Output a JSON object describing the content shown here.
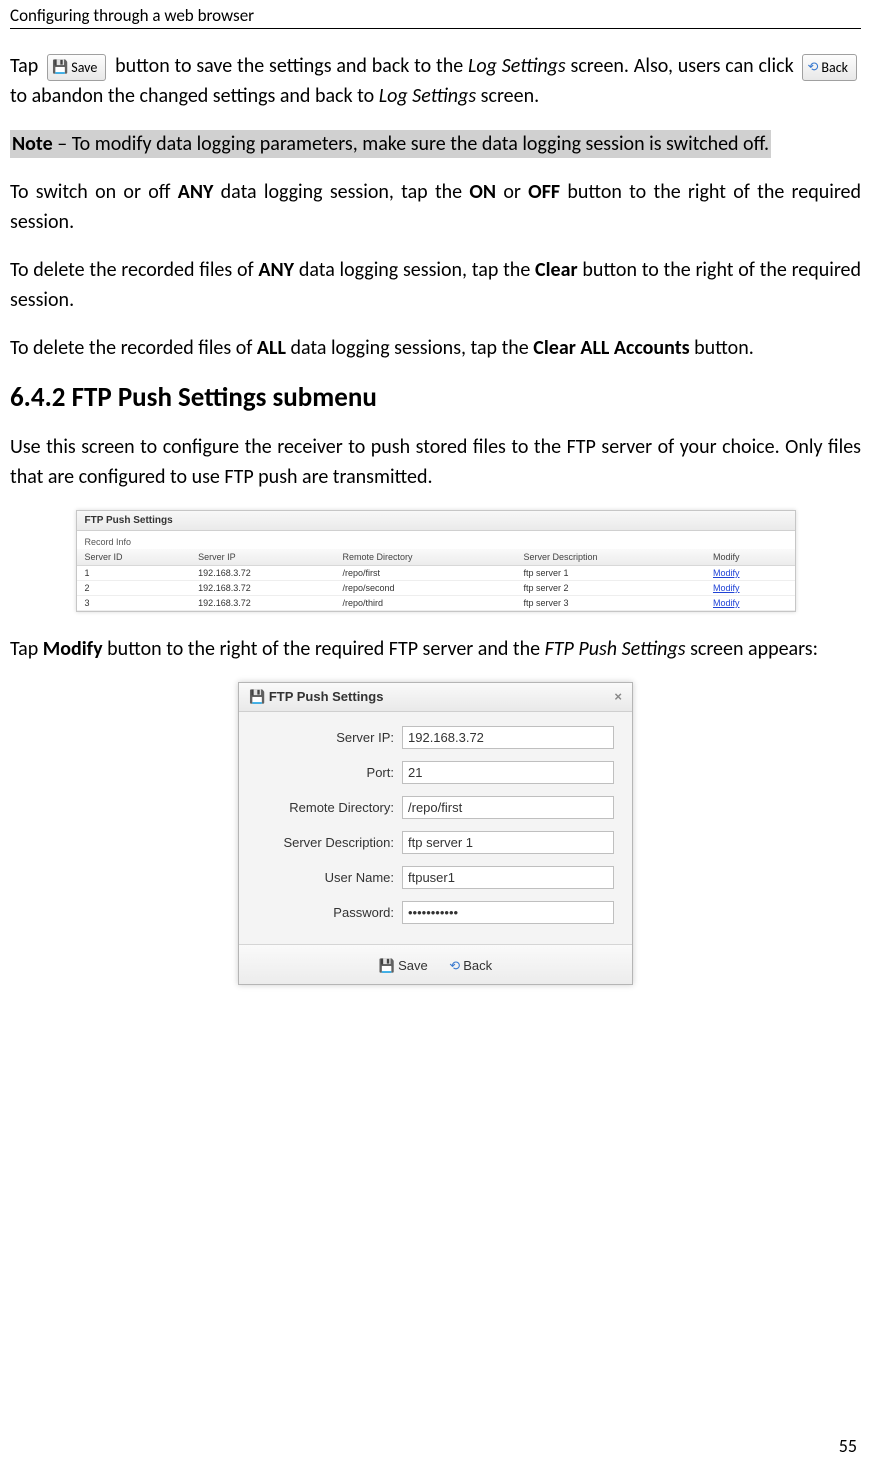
{
  "header": "Configuring through a web browser",
  "page_number": "55",
  "save_button_label": "Save",
  "back_button_label": "Back",
  "para1_a": "Tap ",
  "para1_b": " button to save the settings and back to the ",
  "para1_c": "Log Settings",
  "para1_d": " screen. Also, users can click ",
  "para1_e": " to abandon the changed settings and back to ",
  "para1_f": "Log Settings",
  "para1_g": " screen.",
  "note_label": "Note",
  "note_text": " – To modify data logging parameters, make sure the data logging session is switched off.",
  "para2_a": "To switch on or off ",
  "para2_b": "ANY",
  "para2_c": " data logging session, tap the ",
  "para2_d": "ON",
  "para2_e": " or ",
  "para2_f": "OFF",
  "para2_g": " button to the right of the required session.",
  "para3_a": "To delete the recorded files of ",
  "para3_b": "ANY",
  "para3_c": " data logging session, tap the ",
  "para3_d": "Clear",
  "para3_e": " button to the right of the required session.",
  "para4_a": "To delete the recorded files of ",
  "para4_b": "ALL",
  "para4_c": " data logging sessions, tap the ",
  "para4_d": "Clear ALL Accounts",
  "para4_e": " button.",
  "section_heading": "6.4.2  FTP Push Settings submenu",
  "para5": "Use this screen to configure the receiver to push stored files to the FTP server of your choice. Only files that are configured to use FTP push are transmitted.",
  "table": {
    "title": "FTP Push Settings",
    "record_info": "Record Info",
    "columns": [
      "Server ID",
      "Server IP",
      "Remote Directory",
      "Server Description",
      "Modify"
    ],
    "rows": [
      [
        "1",
        "192.168.3.72",
        "/repo/first",
        "ftp server 1",
        "Modify"
      ],
      [
        "2",
        "192.168.3.72",
        "/repo/second",
        "ftp server 2",
        "Modify"
      ],
      [
        "3",
        "192.168.3.72",
        "/repo/third",
        "ftp server 3",
        "Modify"
      ]
    ]
  },
  "para6_a": "Tap ",
  "para6_b": "Modify",
  "para6_c": " button to the right of the required FTP server and the ",
  "para6_d": "FTP Push Settings",
  "para6_e": " screen appears:",
  "dialog": {
    "title": "FTP Push Settings",
    "fields": {
      "server_ip_label": "Server IP:",
      "server_ip_value": "192.168.3.72",
      "port_label": "Port:",
      "port_value": "21",
      "remote_dir_label": "Remote Directory:",
      "remote_dir_value": "/repo/first",
      "server_desc_label": "Server Description:",
      "server_desc_value": "ftp server 1",
      "user_name_label": "User Name:",
      "user_name_value": "ftpuser1",
      "password_label": "Password:",
      "password_value": "•••••••••••"
    },
    "save_label": "Save",
    "back_label": "Back"
  }
}
